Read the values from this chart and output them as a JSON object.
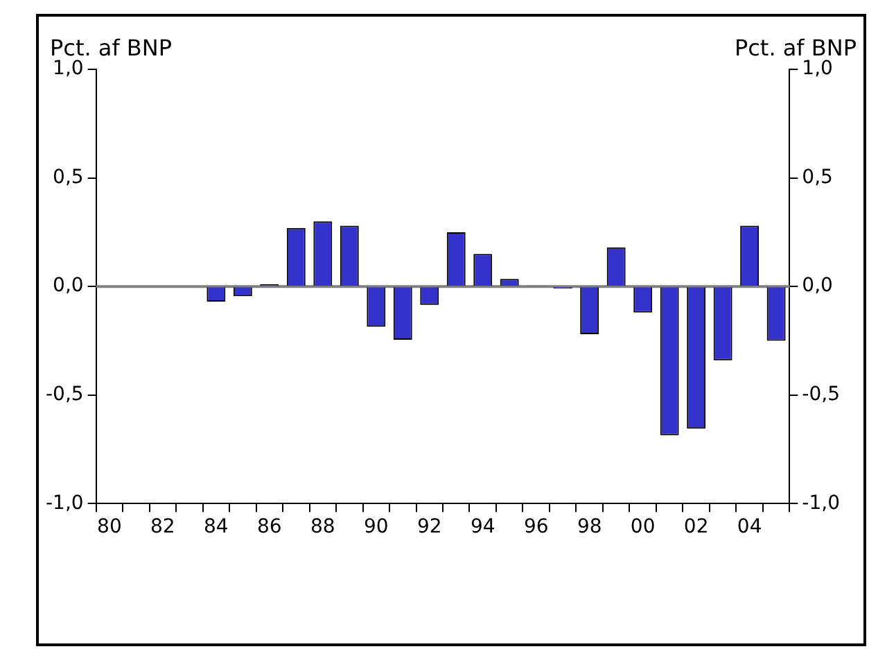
{
  "chart_data": {
    "type": "bar",
    "ylabel": "Pct. af BNP",
    "y2label": "Pct. af BNP",
    "categories": [
      "80",
      null,
      "82",
      null,
      "84",
      null,
      "86",
      null,
      "88",
      null,
      "90",
      null,
      "92",
      null,
      "94",
      null,
      "96",
      null,
      "98",
      null,
      "00",
      null,
      "02",
      null,
      "04",
      null
    ],
    "series": [
      {
        "color": "#3333cc",
        "values": [
          null,
          null,
          null,
          null,
          -0.07,
          -0.045,
          0.01,
          0.27,
          0.3,
          0.28,
          -0.185,
          -0.245,
          -0.085,
          0.25,
          0.15,
          0.035,
          0.005,
          -0.01,
          -0.22,
          0.18,
          -0.12,
          -0.685,
          -0.655,
          -0.34,
          0.28,
          -0.25
        ]
      }
    ],
    "ylim": [
      -1,
      1
    ],
    "yticks": [
      {
        "value": -1,
        "label": "-1,0"
      },
      {
        "value": -0.5,
        "label": "-0,5"
      },
      {
        "value": 0,
        "label": "0,0"
      },
      {
        "value": 0.5,
        "label": "0,5"
      },
      {
        "value": 1,
        "label": "1,0"
      }
    ],
    "y2lim": [
      -1,
      1
    ],
    "y2ticks": [
      {
        "value": -1,
        "label": "-1,0"
      },
      {
        "value": -0.5,
        "label": "-0,5"
      },
      {
        "value": 0,
        "label": "0,0"
      },
      {
        "value": 0.5,
        "label": "0,5"
      },
      {
        "value": 1,
        "label": "1,0"
      }
    ],
    "ref_lines": [
      {
        "axis": "y",
        "value": 0,
        "color": "#808080"
      }
    ],
    "grid": false,
    "legend": false
  }
}
